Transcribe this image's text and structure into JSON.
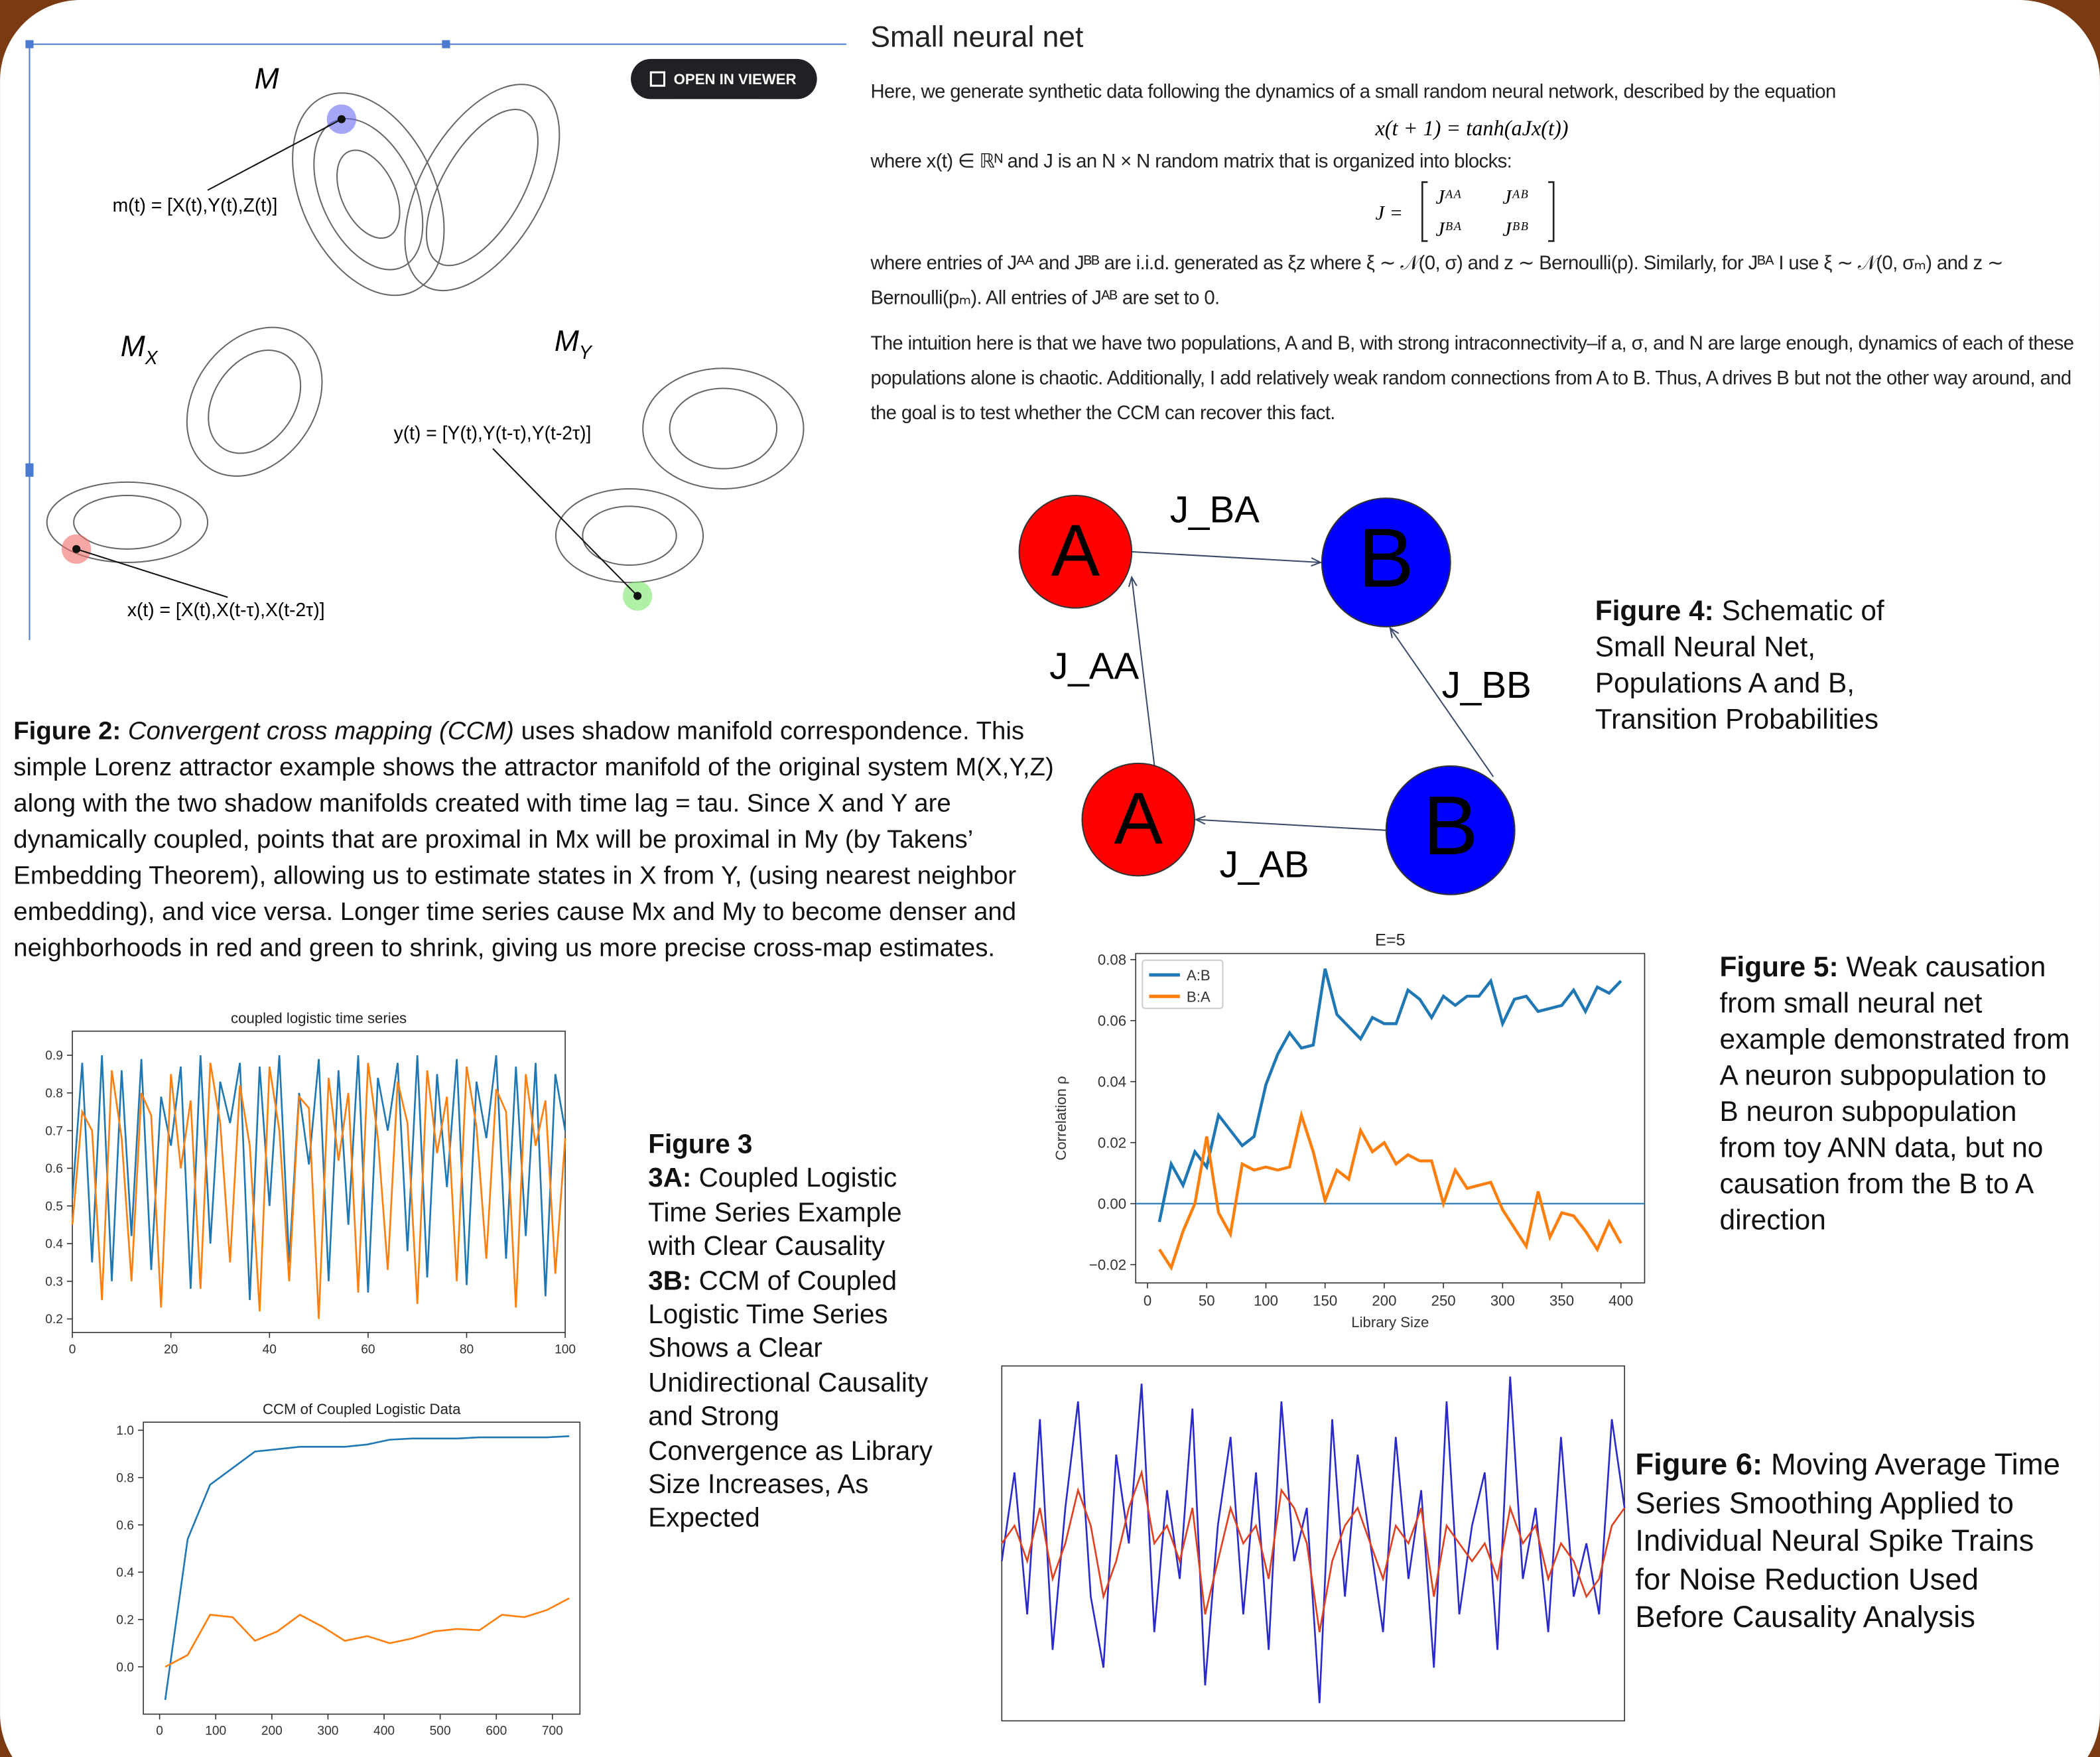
{
  "lorenz": {
    "manifolds": [
      {
        "name": "M"
      },
      {
        "name": "M",
        "sub": "X"
      },
      {
        "name": "M",
        "sub": "Y"
      }
    ],
    "points": [
      "m(t) = [X(t),Y(t),Z(t)]",
      "x(t) = [X(t),X(t-τ),X(t-2τ)]",
      "y(t) = [Y(t),Y(t-τ),Y(t-2τ)]"
    ],
    "button": "OPEN IN VIEWER"
  },
  "figure2": {
    "label": "Figure 2:",
    "italic": "Convergent cross mapping (CCM)",
    "text": "uses shadow manifold correspondence. This simple Lorenz attractor example shows the attractor manifold of the original system M(X,Y,Z) along with the two shadow manifolds created with time lag = tau. Since X and Y are dynamically coupled, points that are proximal in Mx will be proximal in My (by Takens’ Embedding Theorem), allowing us to estimate states in X from Y, (using nearest neighbor embedding), and vice versa. Longer time series cause Mx and My to become denser and neighborhoods in red and green to shrink, giving us more precise cross-map estimates."
  },
  "figure3": {
    "label": "Figure 3",
    "parts": [
      {
        "label": "3A:",
        "text": "Coupled Logistic Time Series Example with Clear Causality"
      },
      {
        "label": "3B:",
        "text": "CCM of Coupled Logistic Time Series Shows a Clear Unidirectional Causality and Strong Convergence as Library Size Increases, As Expected"
      }
    ]
  },
  "figure4": {
    "label": "Figure 4:",
    "text": "Schematic of Small Neural Net, Populations A and B, Transition Probabilities"
  },
  "figure5": {
    "label": "Figure 5:",
    "text": "Weak causation from small neural net example demonstrated from A neuron subpopulation to B neuron subpopulation from toy ANN data, but no causation from the B to A direction"
  },
  "figure6": {
    "label": "Figure 6:",
    "text": "Moving Average Time Series Smoothing Applied to Individual Neural Spike Trains for Noise Reduction Used Before Causality Analysis"
  },
  "neural_net": {
    "heading": "Small neural net",
    "p1": "Here, we generate synthetic data following the dynamics of a small random neural network, described by the equation",
    "equation": "x(t + 1) = tanh(aJx(t))",
    "p2": "where x(t) ∈ ℝᴺ and J is an N × N random matrix that is organized into blocks:",
    "matrix_lhs": "J =",
    "matrix": [
      "Jᴬᴬ",
      "Jᴬᴮ",
      "Jᴮᴬ",
      "Jᴮᴮ"
    ],
    "p3": "where entries of Jᴬᴬ and Jᴮᴮ are i.i.d. generated as ξz where ξ ∼ 𝒩(0, σ) and z ∼ Bernoulli(p). Similarly, for Jᴮᴬ I use ξ ∼ 𝒩(0, σₘ) and z ∼ Bernoulli(pₘ). All entries of Jᴬᴮ are set to 0.",
    "p4": "The intuition here is that we have two populations, A and B, with strong intraconnectivity–if a, σ, and N are large enough, dynamics of each of these populations alone is chaotic. Additionally, I add relatively weak random connections from A to B. Thus, A drives B but not the other way around, and the goal is to test whether the CCM can recover this fact."
  },
  "diagram": {
    "nodes": [
      {
        "label": "A",
        "color": "#ff0000"
      },
      {
        "label": "B",
        "color": "#0000ff"
      },
      {
        "label": "A",
        "color": "#ff0000"
      },
      {
        "label": "B",
        "color": "#0000ff"
      }
    ],
    "edges": [
      "J_BA",
      "J_AA",
      "J_BB",
      "J_AB"
    ]
  },
  "chart_data": [
    {
      "type": "line",
      "title": "E=5",
      "x_label": "Library Size",
      "y_label": "Correlation ρ",
      "legend": "upper left",
      "x": [
        10,
        20,
        30,
        40,
        50,
        60,
        70,
        80,
        90,
        100,
        110,
        120,
        130,
        140,
        150,
        160,
        170,
        180,
        190,
        200,
        210,
        220,
        230,
        240,
        250,
        260,
        270,
        280,
        290,
        300,
        310,
        320,
        330,
        340,
        350,
        360,
        370,
        380,
        390,
        400
      ],
      "series": [
        {
          "name": "A:B",
          "color": "#1f77b4",
          "values": [
            -0.006,
            0.013,
            0.006,
            0.017,
            0.012,
            0.029,
            0.024,
            0.019,
            0.022,
            0.039,
            0.049,
            0.056,
            0.051,
            0.052,
            0.077,
            0.062,
            0.058,
            0.054,
            0.061,
            0.059,
            0.059,
            0.07,
            0.067,
            0.061,
            0.068,
            0.065,
            0.068,
            0.068,
            0.073,
            0.059,
            0.067,
            0.068,
            0.063,
            0.064,
            0.065,
            0.07,
            0.063,
            0.071,
            0.069,
            0.073
          ]
        },
        {
          "name": "B:A",
          "color": "#ff7f0e",
          "values": [
            -0.015,
            -0.021,
            -0.009,
            0.0,
            0.022,
            -0.003,
            -0.01,
            0.013,
            0.011,
            0.012,
            0.011,
            0.012,
            0.029,
            0.017,
            0.001,
            0.011,
            0.008,
            0.024,
            0.017,
            0.02,
            0.013,
            0.016,
            0.014,
            0.014,
            0.0,
            0.011,
            0.005,
            0.006,
            0.007,
            -0.002,
            -0.008,
            -0.014,
            0.004,
            -0.011,
            -0.003,
            -0.004,
            -0.009,
            -0.015,
            -0.006,
            -0.013
          ]
        }
      ],
      "hline": 0,
      "hline_color": "#1f77b4",
      "xlim": [
        -10,
        420
      ],
      "ylim": [
        -0.026,
        0.082
      ],
      "xticks": [
        0,
        50,
        100,
        150,
        200,
        250,
        300,
        350,
        400
      ],
      "yticks": [
        {
          "value": -0.02,
          "label": "−0.02"
        },
        {
          "value": 0,
          "label": "0.00"
        },
        0.02,
        0.04,
        0.06,
        0.08
      ]
    },
    {
      "type": "line",
      "title": "coupled logistic time series",
      "x": [
        0,
        2,
        4,
        6,
        8,
        10,
        12,
        14,
        16,
        18,
        20,
        22,
        24,
        26,
        28,
        30,
        32,
        34,
        36,
        38,
        40,
        42,
        44,
        46,
        48,
        50,
        52,
        54,
        56,
        58,
        60,
        62,
        64,
        66,
        68,
        70,
        72,
        74,
        76,
        78,
        80,
        82,
        84,
        86,
        88,
        90,
        92,
        94,
        96,
        98,
        100
      ],
      "series": [
        {
          "color": "#1f77b4",
          "values": [
            0.52,
            0.88,
            0.35,
            0.9,
            0.3,
            0.86,
            0.42,
            0.89,
            0.33,
            0.79,
            0.66,
            0.87,
            0.28,
            0.9,
            0.4,
            0.83,
            0.72,
            0.88,
            0.25,
            0.87,
            0.5,
            0.9,
            0.35,
            0.8,
            0.61,
            0.89,
            0.3,
            0.86,
            0.45,
            0.9,
            0.27,
            0.84,
            0.7,
            0.88,
            0.38,
            0.9,
            0.31,
            0.85,
            0.55,
            0.89,
            0.29,
            0.83,
            0.68,
            0.9,
            0.36,
            0.87,
            0.42,
            0.88,
            0.26,
            0.85,
            0.7
          ]
        },
        {
          "color": "#ff7f0e",
          "values": [
            0.45,
            0.75,
            0.7,
            0.25,
            0.86,
            0.68,
            0.3,
            0.8,
            0.74,
            0.23,
            0.85,
            0.6,
            0.78,
            0.28,
            0.88,
            0.72,
            0.35,
            0.82,
            0.66,
            0.22,
            0.87,
            0.7,
            0.3,
            0.79,
            0.76,
            0.2,
            0.84,
            0.62,
            0.8,
            0.27,
            0.88,
            0.68,
            0.33,
            0.83,
            0.72,
            0.24,
            0.86,
            0.64,
            0.79,
            0.3,
            0.87,
            0.71,
            0.36,
            0.81,
            0.75,
            0.23,
            0.85,
            0.66,
            0.78,
            0.32,
            0.68
          ]
        }
      ],
      "xlim": [
        0,
        100
      ],
      "ylim": [
        0.164,
        0.964
      ],
      "xticks": [
        0,
        20,
        40,
        60,
        80,
        100
      ],
      "yticks": [
        0.2,
        0.3,
        0.4,
        0.5,
        0.6,
        0.7,
        0.8,
        0.9
      ]
    },
    {
      "type": "line",
      "title": "CCM of Coupled Logistic Data",
      "x": [
        10,
        50,
        90,
        130,
        170,
        210,
        250,
        290,
        330,
        370,
        410,
        450,
        490,
        530,
        570,
        610,
        650,
        690,
        730
      ],
      "series": [
        {
          "color": "#1f77b4",
          "values": [
            -0.14,
            0.54,
            0.77,
            0.84,
            0.91,
            0.92,
            0.93,
            0.93,
            0.93,
            0.94,
            0.96,
            0.965,
            0.965,
            0.965,
            0.97,
            0.97,
            0.97,
            0.97,
            0.975
          ]
        },
        {
          "color": "#ff7f0e",
          "values": [
            0.0,
            0.05,
            0.22,
            0.21,
            0.11,
            0.15,
            0.22,
            0.17,
            0.11,
            0.13,
            0.1,
            0.12,
            0.15,
            0.16,
            0.155,
            0.22,
            0.21,
            0.24,
            0.29
          ]
        }
      ],
      "xlim": [
        -29,
        749
      ],
      "ylim": [
        -0.2,
        1.034
      ],
      "xticks": [
        0,
        100,
        200,
        300,
        400,
        500,
        600,
        700
      ],
      "yticks": [
        {
          "value": 0,
          "label": "0.0"
        },
        0.2,
        0.4,
        0.6,
        0.8,
        {
          "value": 1,
          "label": "1.0"
        }
      ]
    },
    {
      "type": "line",
      "series": [
        {
          "color": "#2a2acc",
          "values": [
            0.45,
            0.7,
            0.3,
            0.85,
            0.2,
            0.6,
            0.9,
            0.35,
            0.15,
            0.75,
            0.5,
            0.95,
            0.25,
            0.65,
            0.4,
            0.88,
            0.1,
            0.55,
            0.8,
            0.3,
            0.7,
            0.2,
            0.9,
            0.45,
            0.6,
            0.05,
            0.85,
            0.35,
            0.75,
            0.5,
            0.25,
            0.8,
            0.4,
            0.65,
            0.15,
            0.9,
            0.3,
            0.55,
            0.7,
            0.2,
            0.97,
            0.4,
            0.6,
            0.25,
            0.8,
            0.35,
            0.5,
            0.3,
            0.85,
            0.6
          ]
        },
        {
          "color": "#e0401f",
          "values": [
            0.5,
            0.55,
            0.45,
            0.6,
            0.4,
            0.5,
            0.65,
            0.55,
            0.35,
            0.45,
            0.6,
            0.7,
            0.5,
            0.55,
            0.45,
            0.6,
            0.3,
            0.45,
            0.6,
            0.5,
            0.55,
            0.4,
            0.65,
            0.6,
            0.5,
            0.25,
            0.45,
            0.55,
            0.6,
            0.5,
            0.4,
            0.55,
            0.5,
            0.6,
            0.35,
            0.55,
            0.5,
            0.45,
            0.5,
            0.4,
            0.6,
            0.5,
            0.55,
            0.4,
            0.5,
            0.45,
            0.35,
            0.4,
            0.55,
            0.6
          ]
        }
      ],
      "ylim": [
        0,
        1
      ]
    }
  ]
}
